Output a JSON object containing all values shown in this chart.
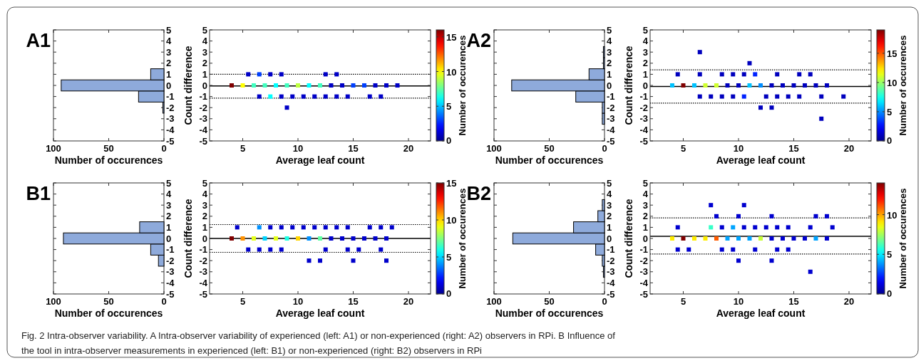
{
  "chart_data": [
    {
      "type": "histogram",
      "title": "A1",
      "orientation": "horizontal",
      "xlabel": "Number of occurences",
      "bins": [
        -2.5,
        -1.5,
        -0.5,
        0.5,
        1.5
      ],
      "values": [
        1,
        23,
        93,
        12
      ],
      "color": "#8eaadb",
      "xlim": [
        100,
        0
      ],
      "xticks": [
        100,
        50,
        0
      ],
      "ylim": [
        -5,
        5
      ],
      "yticks": [
        -5,
        -4,
        -3,
        -2,
        -1,
        0,
        1,
        2,
        3,
        4,
        5
      ],
      "annotations": [
        "Fig. 2  Intra-observer variability. A Intra-observer variability of experienced (left: A1) or non-experienced (right: A2) observers in RPi. B Influence of",
        "the tool in intra-observer measurements in experienced (left: B1) or non-experienced (right: B2) observers in RPi"
      ]
    },
    {
      "type": "scatter",
      "xlabel": "Average leaf count",
      "ylabel": "Count difference",
      "clabel": "Number of occurences",
      "marker": "square",
      "xlim": [
        2,
        22
      ],
      "xticks": [
        5,
        10,
        15,
        20
      ],
      "ylim": [
        -5,
        5
      ],
      "yticks": [
        -5,
        -4,
        -3,
        -2,
        -1,
        0,
        1,
        2,
        3,
        4,
        5
      ],
      "clim": [
        0,
        16
      ],
      "cticks": [
        0,
        5,
        10,
        15
      ],
      "x": [
        5.5,
        6.5,
        7.5,
        8.5,
        12.5,
        13.5,
        4,
        5,
        6,
        7,
        8,
        9,
        10,
        11,
        12,
        13,
        14,
        15,
        16,
        17,
        18,
        19,
        6.5,
        7.5,
        8.5,
        9.5,
        10.5,
        11.5,
        12.5,
        13.5,
        14.5,
        16.5,
        17.5,
        9
      ],
      "values": [
        1,
        1,
        1,
        1,
        1,
        1,
        0,
        0,
        0,
        0,
        0,
        0,
        0,
        0,
        0,
        0,
        0,
        0,
        0,
        0,
        0,
        0,
        -1,
        -1,
        -1,
        -1,
        -1,
        -1,
        -1,
        -1,
        -1,
        -1,
        -1,
        -2
      ],
      "cvalues": [
        1,
        3,
        1,
        1,
        1,
        1,
        16,
        10,
        7,
        7,
        6,
        7,
        9,
        6,
        7,
        1,
        1,
        3,
        3,
        1,
        1,
        1,
        1,
        6,
        1,
        1,
        1,
        1,
        1,
        1,
        1,
        1,
        1,
        1
      ],
      "ref_lines": [
        {
          "axis": "y",
          "value": -0.05,
          "line_style": "solid",
          "color": "#000000"
        },
        {
          "axis": "y",
          "value": 1.0,
          "line_style": "dotted",
          "color": "#000000"
        },
        {
          "axis": "y",
          "value": -1.15,
          "line_style": "dotted",
          "color": "#000000"
        }
      ]
    },
    {
      "type": "histogram",
      "title": "A2",
      "orientation": "horizontal",
      "xlabel": "Number of occurences",
      "bins": [
        -3.5,
        -2.5,
        -1.5,
        -0.5,
        0.5,
        1.5,
        2.5,
        3.5
      ],
      "values": [
        2,
        2,
        26,
        84,
        14,
        1,
        1
      ],
      "color": "#8eaadb",
      "xlim": [
        100,
        0
      ],
      "xticks": [
        100,
        50,
        0
      ],
      "ylim": [
        -5,
        5
      ],
      "yticks": [
        -5,
        -4,
        -3,
        -2,
        -1,
        0,
        1,
        2,
        3,
        4,
        5
      ]
    },
    {
      "type": "scatter",
      "xlabel": "Average leaf count",
      "ylabel": "Count difference",
      "clabel": "Number of occurences",
      "marker": "square",
      "xlim": [
        2,
        22
      ],
      "xticks": [
        5,
        10,
        15,
        20
      ],
      "ylim": [
        -5,
        5
      ],
      "yticks": [
        -5,
        -4,
        -3,
        -2,
        -1,
        0,
        1,
        2,
        3,
        4,
        5
      ],
      "clim": [
        0,
        19
      ],
      "cticks": [
        0,
        5,
        10,
        15
      ],
      "x": [
        6.5,
        11,
        4.5,
        6.5,
        8.5,
        9.5,
        10.5,
        11.5,
        13.5,
        15.5,
        16.5,
        4,
        5,
        6,
        7,
        8,
        9,
        10,
        11,
        12,
        13,
        14,
        15,
        16,
        17,
        18,
        6.5,
        7.5,
        8.5,
        9.5,
        10.5,
        12.5,
        13.5,
        14.5,
        15.5,
        17.5,
        19.5,
        12,
        13,
        17.5
      ],
      "values": [
        3,
        2,
        1,
        1,
        1,
        1,
        1,
        1,
        1,
        1,
        1,
        0,
        0,
        0,
        0,
        0,
        0,
        0,
        0,
        0,
        0,
        0,
        0,
        0,
        0,
        0,
        -1,
        -1,
        -1,
        -1,
        -1,
        -1,
        -1,
        -1,
        -1,
        -1,
        -1,
        -2,
        -2,
        -3
      ],
      "cvalues": [
        1,
        1,
        1,
        1,
        1,
        1,
        1,
        3,
        1,
        1,
        1,
        6,
        19,
        6,
        11,
        11,
        1,
        1,
        6,
        5,
        1,
        1,
        1,
        1,
        1,
        1,
        1,
        1,
        1,
        1,
        3,
        1,
        1,
        1,
        1,
        1,
        1,
        1,
        1,
        1
      ],
      "ref_lines": [
        {
          "axis": "y",
          "value": -0.1,
          "line_style": "solid",
          "color": "#000000"
        },
        {
          "axis": "y",
          "value": 1.4,
          "line_style": "dotted",
          "color": "#000000"
        },
        {
          "axis": "y",
          "value": -1.6,
          "line_style": "dotted",
          "color": "#000000"
        }
      ]
    },
    {
      "type": "histogram",
      "title": "B1",
      "orientation": "horizontal",
      "xlabel": "Number of occurences",
      "bins": [
        -2.5,
        -1.5,
        -0.5,
        0.5,
        1.5
      ],
      "values": [
        5,
        12,
        91,
        22
      ],
      "color": "#8eaadb",
      "xlim": [
        100,
        0
      ],
      "xticks": [
        100,
        50,
        0
      ],
      "ylim": [
        -5,
        5
      ],
      "yticks": [
        -5,
        -4,
        -3,
        -2,
        -1,
        0,
        1,
        2,
        3,
        4,
        5
      ]
    },
    {
      "type": "scatter",
      "xlabel": "Average leaf count",
      "ylabel": "Count difference",
      "clabel": "Number of occurences",
      "marker": "square",
      "xlim": [
        2,
        22
      ],
      "xticks": [
        5,
        10,
        15,
        20
      ],
      "ylim": [
        -5,
        5
      ],
      "yticks": [
        -5,
        -4,
        -3,
        -2,
        -1,
        0,
        1,
        2,
        3,
        4,
        5
      ],
      "clim": [
        0,
        15
      ],
      "cticks": [
        0,
        5,
        10,
        15
      ],
      "x": [
        4.5,
        6.5,
        7.5,
        8.5,
        9.5,
        10.5,
        11.5,
        12.5,
        13.5,
        14.5,
        16.5,
        17.5,
        18.5,
        4,
        5,
        6,
        7,
        8,
        9,
        10,
        11,
        12,
        13,
        14,
        15,
        16,
        17,
        18,
        5.5,
        6.5,
        7.5,
        8.5,
        12.5,
        14.5,
        15.5,
        17.5,
        11,
        12,
        15,
        18
      ],
      "values": [
        1,
        1,
        1,
        1,
        1,
        1,
        1,
        1,
        1,
        1,
        1,
        1,
        1,
        0,
        0,
        0,
        0,
        0,
        0,
        0,
        0,
        0,
        0,
        0,
        0,
        0,
        0,
        0,
        -1,
        -1,
        -1,
        -1,
        -1,
        -1,
        -1,
        -1,
        -2,
        -2,
        -2,
        -2
      ],
      "cvalues": [
        1,
        4,
        1,
        1,
        1,
        1,
        1,
        1,
        1,
        1,
        1,
        1,
        1,
        15,
        11,
        9,
        5,
        9,
        6,
        10,
        4,
        7,
        1,
        1,
        1,
        1,
        1,
        1,
        1,
        1,
        1,
        1,
        1,
        1,
        1,
        1,
        1,
        1,
        1,
        1
      ],
      "ref_lines": [
        {
          "axis": "y",
          "value": 0,
          "line_style": "solid",
          "color": "#000000"
        },
        {
          "axis": "y",
          "value": 1.25,
          "line_style": "dotted",
          "color": "#000000"
        },
        {
          "axis": "y",
          "value": -1.25,
          "line_style": "dotted",
          "color": "#000000"
        }
      ]
    },
    {
      "type": "histogram",
      "title": "B2",
      "orientation": "horizontal",
      "xlabel": "Number of occurences",
      "bins": [
        -3.5,
        -2.5,
        -1.5,
        -0.5,
        0.5,
        1.5,
        2.5,
        3.5
      ],
      "values": [
        1,
        2,
        8,
        83,
        28,
        6,
        2
      ],
      "color": "#8eaadb",
      "xlim": [
        100,
        0
      ],
      "xticks": [
        100,
        50,
        0
      ],
      "ylim": [
        -5,
        5
      ],
      "yticks": [
        -5,
        -4,
        -3,
        -2,
        -1,
        0,
        1,
        2,
        3,
        4,
        5
      ]
    },
    {
      "type": "scatter",
      "xlabel": "Average leaf count",
      "ylabel": "Count difference",
      "clabel": "Number of occurences",
      "marker": "square",
      "xlim": [
        2,
        22
      ],
      "xticks": [
        5,
        10,
        15,
        20
      ],
      "ylim": [
        -5,
        5
      ],
      "yticks": [
        -5,
        -4,
        -3,
        -2,
        -1,
        0,
        1,
        2,
        3,
        4,
        5
      ],
      "clim": [
        0,
        14
      ],
      "cticks": [
        0,
        5,
        10
      ],
      "x": [
        7.5,
        10.5,
        8,
        10,
        13,
        17,
        18,
        4.5,
        7.5,
        8.5,
        9.5,
        10.5,
        11.5,
        12.5,
        13.5,
        14.5,
        16.5,
        18.5,
        4,
        5,
        6,
        7,
        8,
        9,
        10,
        11,
        12,
        13,
        14,
        15,
        16,
        17,
        18,
        4.5,
        5.5,
        8.5,
        9.5,
        11.5,
        13.5,
        14.5,
        10,
        13,
        16.5
      ],
      "values": [
        3,
        3,
        2,
        2,
        2,
        2,
        2,
        1,
        1,
        1,
        1,
        1,
        1,
        1,
        1,
        1,
        1,
        1,
        0,
        0,
        0,
        0,
        0,
        0,
        0,
        0,
        0,
        0,
        0,
        0,
        0,
        0,
        0,
        -1,
        -1,
        -1,
        -1,
        -1,
        -1,
        -1,
        -2,
        -2,
        -3
      ],
      "cvalues": [
        1,
        1,
        1,
        1,
        1,
        1,
        1,
        1,
        6,
        1,
        4,
        1,
        1,
        1,
        1,
        1,
        1,
        1,
        9,
        14,
        9,
        9,
        11,
        4,
        4,
        4,
        8,
        1,
        1,
        1,
        1,
        4,
        1,
        1,
        1,
        1,
        1,
        1,
        1,
        1,
        1,
        1,
        1
      ],
      "ref_lines": [
        {
          "axis": "y",
          "value": 0.2,
          "line_style": "solid",
          "color": "#000000"
        },
        {
          "axis": "y",
          "value": 1.85,
          "line_style": "dotted",
          "color": "#000000"
        },
        {
          "axis": "y",
          "value": -1.4,
          "line_style": "dotted",
          "color": "#000000"
        }
      ]
    }
  ]
}
